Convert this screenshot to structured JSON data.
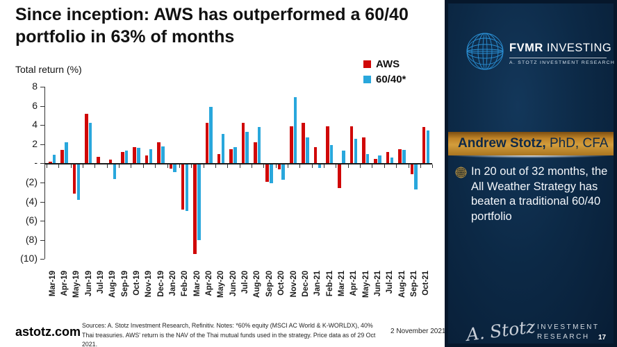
{
  "header": {
    "title_line1": "Since inception: AWS has outperformed a 60/40",
    "title_line2": "portfolio in 63% of months"
  },
  "chart_data": {
    "type": "bar",
    "title": "Since inception: AWS has outperformed a 60/40 portfolio in 63% of months",
    "ylabel": "Total return (%)",
    "xlabel": "",
    "grid": false,
    "legend_position": "top-right",
    "ylim": [
      -10,
      8
    ],
    "yticks": {
      "values": [
        8,
        6,
        4,
        2,
        0,
        -2,
        -4,
        -6,
        -8,
        -10
      ],
      "labels": [
        "8",
        "6",
        "4",
        "2",
        "-",
        "(2)",
        "(4)",
        "(6)",
        "(8)",
        "(10)"
      ]
    },
    "categories": [
      "Mar-19",
      "Apr-19",
      "May-19",
      "Jun-19",
      "Jul-19",
      "Aug-19",
      "Sep-19",
      "Oct-19",
      "Nov-19",
      "Dec-19",
      "Jan-20",
      "Feb-20",
      "Mar-20",
      "Apr-20",
      "May-20",
      "Jun-20",
      "Jul-20",
      "Aug-20",
      "Sep-20",
      "Oct-20",
      "Nov-20",
      "Dec-20",
      "Jan-21",
      "Feb-21",
      "Mar-21",
      "Apr-21",
      "May-21",
      "Jun-21",
      "Jul-21",
      "Aug-21",
      "Sep-21",
      "Oct-21"
    ],
    "series": [
      {
        "name": "AWS",
        "color": "#d00707",
        "values": [
          0.2,
          1.4,
          -3.0,
          5.2,
          0.7,
          0.4,
          1.2,
          1.7,
          0.8,
          2.2,
          -0.4,
          -4.7,
          -9.3,
          4.2,
          1.0,
          1.5,
          4.2,
          2.2,
          -1.8,
          -0.5,
          3.9,
          4.2,
          1.7,
          3.9,
          -2.4,
          3.9,
          2.7,
          0.5,
          1.2,
          1.5,
          -1.0,
          3.8
        ]
      },
      {
        "name": "60/40*",
        "color": "#29a7dc",
        "values": [
          0.9,
          2.2,
          -3.7,
          4.2,
          0.0,
          -1.5,
          1.3,
          1.6,
          1.5,
          1.8,
          -0.8,
          -4.8,
          -7.9,
          5.9,
          3.1,
          1.7,
          3.3,
          3.8,
          -1.9,
          -1.6,
          6.9,
          2.7,
          -0.3,
          1.9,
          1.3,
          2.6,
          1.0,
          0.8,
          0.6,
          1.4,
          -2.6,
          3.4
        ]
      }
    ]
  },
  "footer": {
    "site": "astotz.com",
    "sources": "Sources: A. Stotz Investment Research, Refinitiv. Notes: *60% equity (MSCI AC World & K-WORLDX), 40% Thai treasuries. AWS' return is the NAV of the Thai mutual funds used in the strategy. Price data as of 29 Oct 2021.",
    "date": "2 November 2021"
  },
  "sidebar": {
    "brand_name_bold": "FVMR",
    "brand_name_rest": " INVESTING",
    "brand_subtitle": "A. STOTZ INVESTMENT RESEARCH",
    "author_bold": "Andrew Stotz,",
    "author_rest": " PhD, CFA",
    "bullet_text": "In 20 out of 32 months, the All Weather Strategy has beaten a traditional 60/40 portfolio",
    "signature": "A. Stotz",
    "brand_bottom_line1": "INVESTMENT",
    "brand_bottom_line2": "RESEARCH",
    "page_number": "17",
    "colors": {
      "gold": "#c8922e",
      "navy": "#0d2b4d",
      "globe_blue": "#2a8fd4"
    }
  }
}
